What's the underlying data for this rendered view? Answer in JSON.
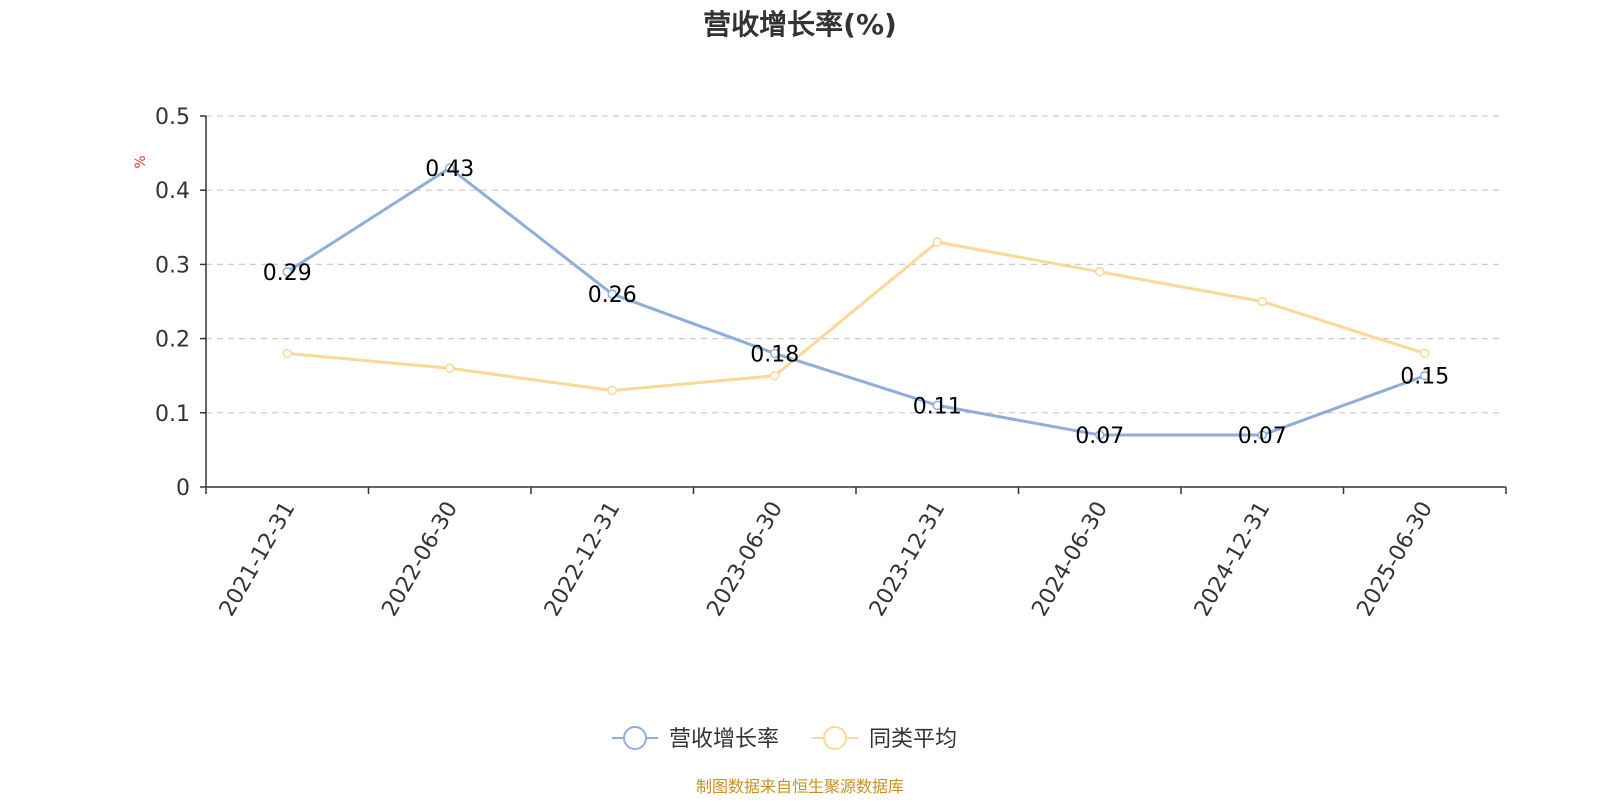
{
  "chart_data": {
    "type": "line",
    "title": "营收增长率(%)",
    "ylabel": "%",
    "ylim": [
      0,
      0.5
    ],
    "yticks": [
      0,
      0.1,
      0.2,
      0.3,
      0.4,
      0.5
    ],
    "ytick_labels": [
      "0",
      "0.1",
      "0.2",
      "0.3",
      "0.4",
      "0.5"
    ],
    "x": [
      "2021-12-31",
      "2022-06-30",
      "2022-12-31",
      "2023-06-30",
      "2023-12-31",
      "2024-06-30",
      "2024-12-31",
      "2025-06-30"
    ],
    "series": [
      {
        "name": "营收增长率",
        "color": "#8FAEDA",
        "values": [
          0.29,
          0.43,
          0.26,
          0.18,
          0.11,
          0.07,
          0.07,
          0.15
        ],
        "data_labels": [
          "0.29",
          "0.43",
          "0.26",
          "0.18",
          "0.11",
          "0.07",
          "0.07",
          "0.15"
        ]
      },
      {
        "name": "同类平均",
        "color": "#FAD898",
        "values": [
          0.18,
          0.16,
          0.13,
          0.15,
          0.33,
          0.29,
          0.25,
          0.18
        ]
      }
    ],
    "grid": "horizontal-dashed",
    "legend_position": "bottom-center"
  },
  "colors": {
    "unit_label": "#E53935",
    "source_text": "#C8901E",
    "axis": "#333333",
    "grid": "#CCCCCC"
  },
  "footer": {
    "source": "制图数据来自恒生聚源数据库"
  }
}
